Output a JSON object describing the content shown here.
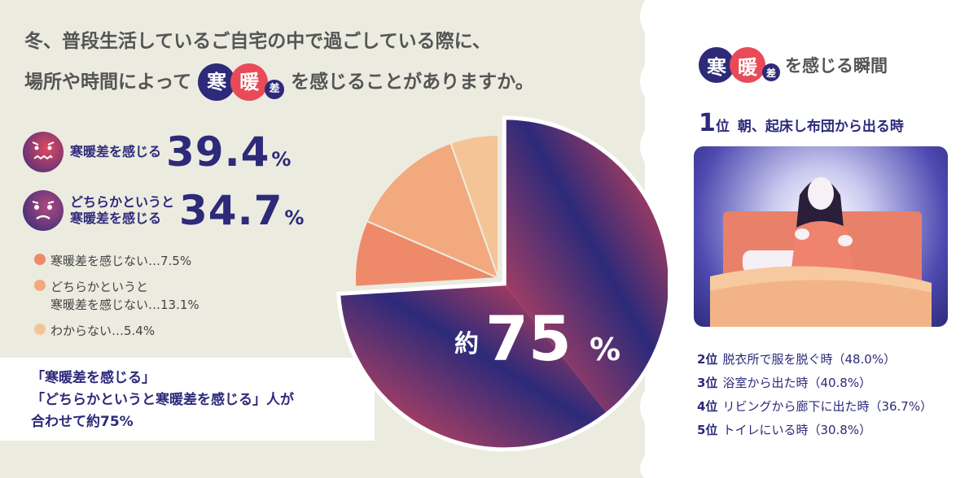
{
  "question": {
    "line1": "冬、普段生活しているご自宅の中で過ごしている際に、",
    "line2_pre": "場所や時間によって",
    "badge_k1": "寒",
    "badge_k2": "暖",
    "badge_k3": "差",
    "line2_post": "を感じることがありますか。"
  },
  "stats": [
    {
      "label_l1": "寒暖差を感じる",
      "label_l2": "",
      "value": "39.4",
      "unit": "%"
    },
    {
      "label_l1": "どちらかというと",
      "label_l2": "寒暖差を感じる",
      "value": "34.7",
      "unit": "%"
    }
  ],
  "legend": [
    {
      "text_l1": "寒暖差を感じない…7.5%",
      "text_l2": "",
      "color": "#ee8a6a"
    },
    {
      "text_l1": "どちらかというと",
      "text_l2": "寒暖差を感じない…13.1%",
      "color": "#f3a97e"
    },
    {
      "text_l1": "わからない…5.4%",
      "text_l2": "",
      "color": "#f5c496"
    }
  ],
  "callout": {
    "l1": "「寒暖差を感じる」",
    "l2": "「どちらかというと寒暖差を感じる」人が",
    "l3": "合わせて約75%"
  },
  "center_label": {
    "prefix": "約",
    "value": "75",
    "unit": "%"
  },
  "chart_data": {
    "type": "pie",
    "title": "",
    "slices": [
      {
        "label": "寒暖差を感じる",
        "value": 39.4,
        "color": "#2d2a7a"
      },
      {
        "label": "どちらかというと寒暖差を感じる",
        "value": 34.7,
        "color": "#e94a57"
      },
      {
        "label": "寒暖差を感じない",
        "value": 7.5,
        "color": "#ee8a6a"
      },
      {
        "label": "どちらかというと寒暖差を感じない",
        "value": 13.1,
        "color": "#f3a97e"
      },
      {
        "label": "わからない",
        "value": 5.4,
        "color": "#f5c496"
      }
    ],
    "highlight_total": 75
  },
  "right": {
    "title_k1": "寒",
    "title_k2": "暖",
    "title_k3": "差",
    "title_text": "を感じる瞬間",
    "rank1_num": "1",
    "rank1_unit": "位",
    "rank1_text": "朝、起床し布団から出る時",
    "ranks": [
      {
        "rank": "2位",
        "text": "脱衣所で服を脱ぐ時（48.0%）"
      },
      {
        "rank": "3位",
        "text": "浴室から出た時（40.8%）"
      },
      {
        "rank": "4位",
        "text": "リビングから廊下に出た時（36.7%）"
      },
      {
        "rank": "5位",
        "text": "トイレにいる時（30.8%）"
      }
    ]
  },
  "colors": {
    "navy": "#2d2a7a",
    "red": "#e94a57",
    "bg": "#ecebe0"
  }
}
